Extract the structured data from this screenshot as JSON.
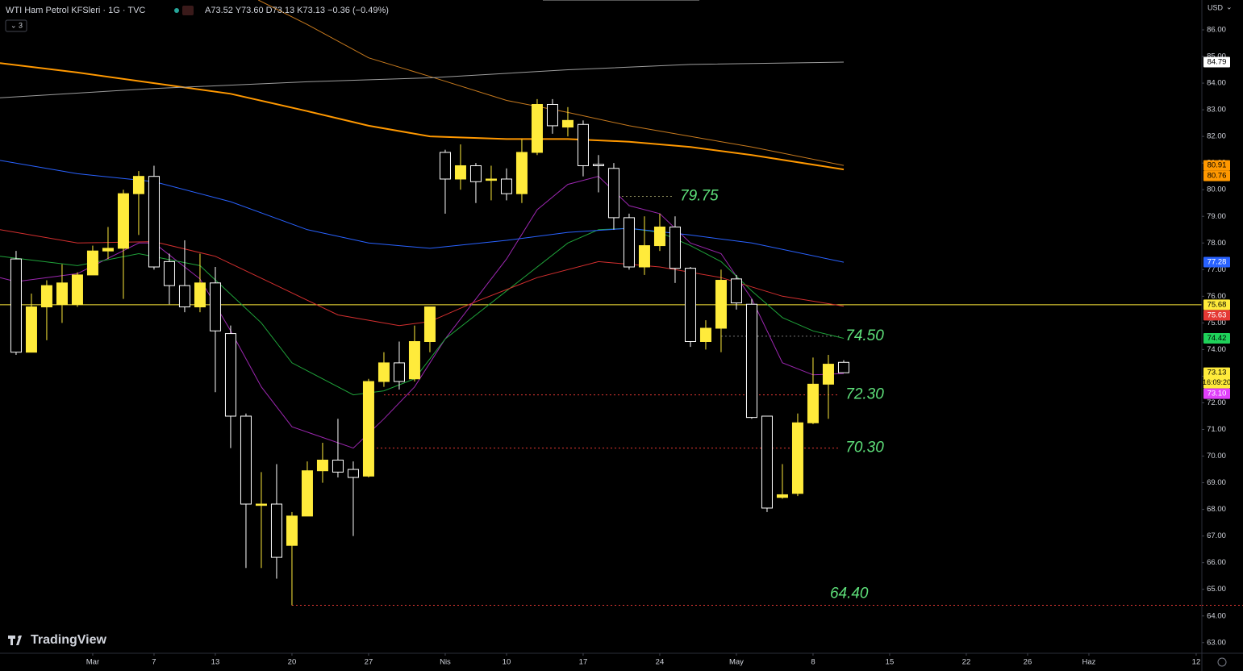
{
  "header": {
    "symbol": "WTI Ham Petrol KFSleri · 1G · TVC",
    "ohlc": "A73.52 Y73.60 D73.13 K73.13 −0.36 (−0.49%)",
    "indicators": "3",
    "currency": "USD",
    "logo": "TradingView"
  },
  "chart_data": {
    "type": "candlestick",
    "x": [
      -5,
      -4,
      -3,
      -2,
      -1,
      0,
      1,
      2,
      3,
      4,
      5,
      6,
      7,
      8,
      9,
      10,
      11,
      12,
      13,
      14,
      15,
      16,
      17,
      18,
      19,
      20,
      21,
      22,
      23,
      24,
      25,
      26,
      27,
      28,
      29,
      30,
      31,
      32,
      33,
      34,
      35,
      36,
      37,
      38,
      39,
      40,
      41,
      42,
      43,
      44,
      45,
      46,
      47,
      48,
      49
    ],
    "open": [
      77.4,
      73.9,
      75.6,
      75.7,
      75.7,
      76.8,
      77.7,
      77.8,
      79.85,
      80.5,
      77.3,
      76.4,
      75.6,
      76.5,
      74.6,
      71.5,
      68.15,
      68.2,
      66.65,
      67.75,
      69.45,
      69.85,
      69.5,
      69.25,
      72.8,
      73.5,
      72.9,
      74.3,
      81.4,
      80.4,
      80.9,
      80.35,
      80.4,
      79.85,
      81.4,
      83.2,
      82.35,
      82.45,
      80.95,
      80.8,
      78.95,
      77.1,
      77.9,
      78.6,
      77.05,
      74.3,
      74.8,
      76.65,
      75.7,
      71.5,
      68.45,
      68.6,
      71.25,
      72.7,
      73.52
    ],
    "high": [
      77.7,
      76.1,
      76.6,
      77.2,
      76.9,
      77.9,
      78.6,
      80.0,
      80.7,
      80.9,
      77.6,
      78.1,
      77.6,
      77.1,
      74.9,
      71.6,
      69.4,
      69.7,
      67.9,
      69.8,
      70.5,
      71.4,
      69.8,
      72.9,
      73.9,
      74.3,
      74.9,
      75.6,
      81.5,
      81.7,
      81.0,
      80.9,
      80.8,
      81.9,
      83.4,
      83.4,
      83.1,
      82.6,
      81.3,
      81.0,
      79.1,
      79.0,
      79.1,
      79.0,
      77.1,
      75.1,
      77.0,
      76.8,
      75.9,
      71.5,
      69.7,
      71.6,
      73.7,
      73.8,
      73.6
    ],
    "low": [
      73.8,
      73.9,
      74.35,
      75.0,
      75.6,
      76.8,
      77.4,
      75.9,
      78.3,
      77.0,
      75.7,
      75.4,
      75.4,
      72.4,
      70.3,
      65.8,
      65.8,
      65.4,
      64.4,
      67.8,
      69.0,
      69.2,
      67.0,
      69.2,
      72.6,
      72.5,
      72.8,
      73.9,
      79.1,
      80.0,
      79.5,
      79.6,
      79.6,
      79.5,
      81.3,
      82.1,
      82.0,
      80.5,
      79.9,
      78.5,
      77.0,
      76.8,
      77.7,
      76.5,
      74.1,
      74.0,
      73.9,
      75.5,
      71.4,
      67.9,
      68.4,
      68.5,
      71.2,
      71.4,
      73.13
    ],
    "close": [
      73.9,
      75.6,
      76.4,
      76.5,
      76.8,
      77.7,
      77.8,
      79.85,
      80.5,
      77.1,
      76.4,
      75.6,
      76.5,
      74.7,
      71.5,
      68.2,
      68.2,
      66.2,
      67.75,
      69.45,
      69.85,
      69.4,
      69.2,
      72.8,
      73.5,
      72.8,
      74.3,
      75.6,
      80.4,
      80.9,
      80.3,
      80.4,
      79.85,
      81.4,
      83.2,
      82.4,
      82.6,
      80.9,
      80.9,
      78.95,
      77.1,
      77.9,
      78.6,
      77.05,
      74.3,
      74.8,
      76.6,
      75.75,
      71.45,
      68.05,
      68.55,
      71.25,
      72.7,
      73.45,
      73.13
    ],
    "up_color": "#ffeb3b",
    "down_color": "#ffffff",
    "lines": [
      {
        "color": "#9c27b0",
        "width": 1,
        "x": [
          -6.05,
          -5,
          -1,
          3,
          4,
          7,
          9,
          11,
          13,
          17,
          19,
          21,
          23,
          25,
          27,
          29,
          31,
          33,
          35,
          37,
          39,
          41,
          43,
          45,
          47,
          49
        ],
        "values": [
          76.7,
          76.55,
          76.85,
          78.0,
          78.0,
          76.65,
          74.7,
          72.6,
          71.1,
          70.3,
          71.4,
          72.6,
          74.4,
          75.9,
          77.4,
          79.25,
          80.2,
          80.5,
          79.4,
          79.1,
          78.0,
          77.6,
          75.9,
          73.5,
          73.05,
          73.1
        ]
      },
      {
        "color": "#1fa33a",
        "width": 1,
        "x": [
          -6.05,
          -1,
          3,
          7,
          11,
          13,
          17,
          19,
          21,
          23,
          27,
          31,
          33,
          35,
          37,
          39,
          41,
          43,
          45,
          47,
          49
        ],
        "values": [
          77.5,
          77.15,
          77.6,
          77.15,
          75.0,
          73.5,
          72.3,
          72.45,
          72.9,
          74.4,
          76.2,
          78.0,
          78.5,
          78.55,
          78.4,
          77.9,
          77.3,
          76.2,
          75.2,
          74.7,
          74.42
        ]
      },
      {
        "color": "#d32f2f",
        "width": 1,
        "x": [
          -6.05,
          -1,
          4,
          8,
          12,
          16,
          20,
          22,
          25,
          29,
          33,
          37,
          41,
          45,
          49
        ],
        "values": [
          78.5,
          78.0,
          78.05,
          77.5,
          76.4,
          75.3,
          74.9,
          75.05,
          75.8,
          76.7,
          77.3,
          77.1,
          76.7,
          76.0,
          75.63
        ]
      },
      {
        "color": "#2962ff",
        "width": 1,
        "x": [
          -6.05,
          -1,
          4,
          9,
          14,
          18,
          22,
          27,
          31,
          35,
          39,
          43,
          49
        ],
        "values": [
          81.1,
          80.6,
          80.3,
          79.55,
          78.5,
          78.0,
          77.8,
          78.1,
          78.4,
          78.55,
          78.3,
          78.0,
          77.28
        ]
      },
      {
        "color": "#ff9800",
        "width": 2,
        "x": [
          -6.05,
          -1,
          4,
          9,
          14,
          18,
          22,
          27,
          31,
          35,
          39,
          43,
          49
        ],
        "values": [
          84.75,
          84.4,
          84.0,
          83.6,
          82.95,
          82.4,
          82.0,
          81.9,
          81.9,
          81.8,
          81.6,
          81.3,
          80.76
        ]
      },
      {
        "color": "#c77a1e",
        "width": 1,
        "x": [
          10.8,
          14,
          18,
          22,
          27,
          31,
          35,
          39,
          43,
          49
        ],
        "values": [
          87.12,
          86.2,
          84.95,
          84.25,
          83.35,
          82.9,
          82.4,
          82.0,
          81.6,
          80.91
        ]
      },
      {
        "color": "#9e9e9e",
        "width": 1,
        "x": [
          -6.05,
          4,
          14,
          22,
          31,
          39,
          49
        ],
        "values": [
          83.45,
          83.8,
          84.05,
          84.2,
          84.5,
          84.7,
          84.79
        ]
      }
    ],
    "levels": [
      {
        "value": 79.75,
        "x_start": 34,
        "x_end": 37.9,
        "color": "#8a8a5a"
      },
      {
        "value": 74.5,
        "label": "74.50",
        "x_start": 41,
        "x_end": 48.7,
        "color": "#777777"
      },
      {
        "value": 72.3,
        "label": "72.30",
        "x_start": 19,
        "x_end": 48.7,
        "color": "#e53935"
      },
      {
        "value": 70.3,
        "label": "70.30",
        "x_start": 18,
        "x_end": 48.7,
        "color": "#e53935"
      },
      {
        "value": 64.4,
        "label": "64.40",
        "x_start": 13,
        "x_end": 48,
        "color": "#e53935",
        "extend": true
      }
    ],
    "badges": [
      {
        "value": 84.79,
        "color": "#ffffff",
        "text_color": "#000000"
      },
      {
        "value": 80.91,
        "color": "#ff9800",
        "text_color": "#000000"
      },
      {
        "value": 80.76,
        "color": "#ff9800",
        "text_color": "#000000"
      },
      {
        "value": 77.28,
        "color": "#2962ff",
        "text_color": "#ffffff"
      },
      {
        "value": 75.68,
        "color": "#ffeb3b",
        "text_color": "#000000",
        "hline": true
      },
      {
        "value": 75.63,
        "color": "#e53935",
        "text_color": "#ffffff"
      },
      {
        "value": 74.42,
        "color": "#1fd15a",
        "text_color": "#000000"
      },
      {
        "value": 73.13,
        "color": "#ffeb3b",
        "text_color": "#000000",
        "countdown": "16:09:20"
      },
      {
        "value": 73.1,
        "label": "73.10",
        "color": "#e040fb",
        "text_color": "#ffffff"
      }
    ],
    "xlim": [
      -6.05,
      72.37
    ],
    "ylim": [
      62.6,
      87.12
    ],
    "xticks": [
      {
        "value": 0,
        "label": "Mar"
      },
      {
        "value": 4,
        "label": "7"
      },
      {
        "value": 8,
        "label": "13"
      },
      {
        "value": 13,
        "label": "20"
      },
      {
        "value": 18,
        "label": "27"
      },
      {
        "value": 23,
        "label": "Nis"
      },
      {
        "value": 27,
        "label": "10"
      },
      {
        "value": 32,
        "label": "17"
      },
      {
        "value": 37,
        "label": "24"
      },
      {
        "value": 42,
        "label": "May"
      },
      {
        "value": 47,
        "label": "8"
      },
      {
        "value": 52,
        "label": "15"
      },
      {
        "value": 57,
        "label": "22"
      },
      {
        "value": 61,
        "label": "26"
      },
      {
        "value": 65,
        "label": "Haz"
      },
      {
        "value": 72,
        "label": "12"
      }
    ],
    "yticks": [
      {
        "value": 63,
        "label": "63.00"
      },
      {
        "value": 64,
        "label": "64.00"
      },
      {
        "value": 65,
        "label": "65.00"
      },
      {
        "value": 66,
        "label": "66.00"
      },
      {
        "value": 67,
        "label": "67.00"
      },
      {
        "value": 68,
        "label": "68.00"
      },
      {
        "value": 69,
        "label": "69.00"
      },
      {
        "value": 70,
        "label": "70.00"
      },
      {
        "value": 71,
        "label": "71.00"
      },
      {
        "value": 72,
        "label": "72.00"
      },
      {
        "value": 73,
        "label": "73.00"
      },
      {
        "value": 74,
        "label": "74.00"
      },
      {
        "value": 75,
        "label": "75.00"
      },
      {
        "value": 76,
        "label": "76.00"
      },
      {
        "value": 77,
        "label": "77.00"
      },
      {
        "value": 78,
        "label": "78.00"
      },
      {
        "value": 79,
        "label": "79.00"
      },
      {
        "value": 80,
        "label": "80.00"
      },
      {
        "value": 81,
        "label": "81.00"
      },
      {
        "value": 82,
        "label": "82.00"
      },
      {
        "value": 83,
        "label": "83.00"
      },
      {
        "value": 84,
        "label": "84.00"
      },
      {
        "value": 85,
        "label": "85.00"
      },
      {
        "value": 86,
        "label": "86.00"
      }
    ]
  }
}
